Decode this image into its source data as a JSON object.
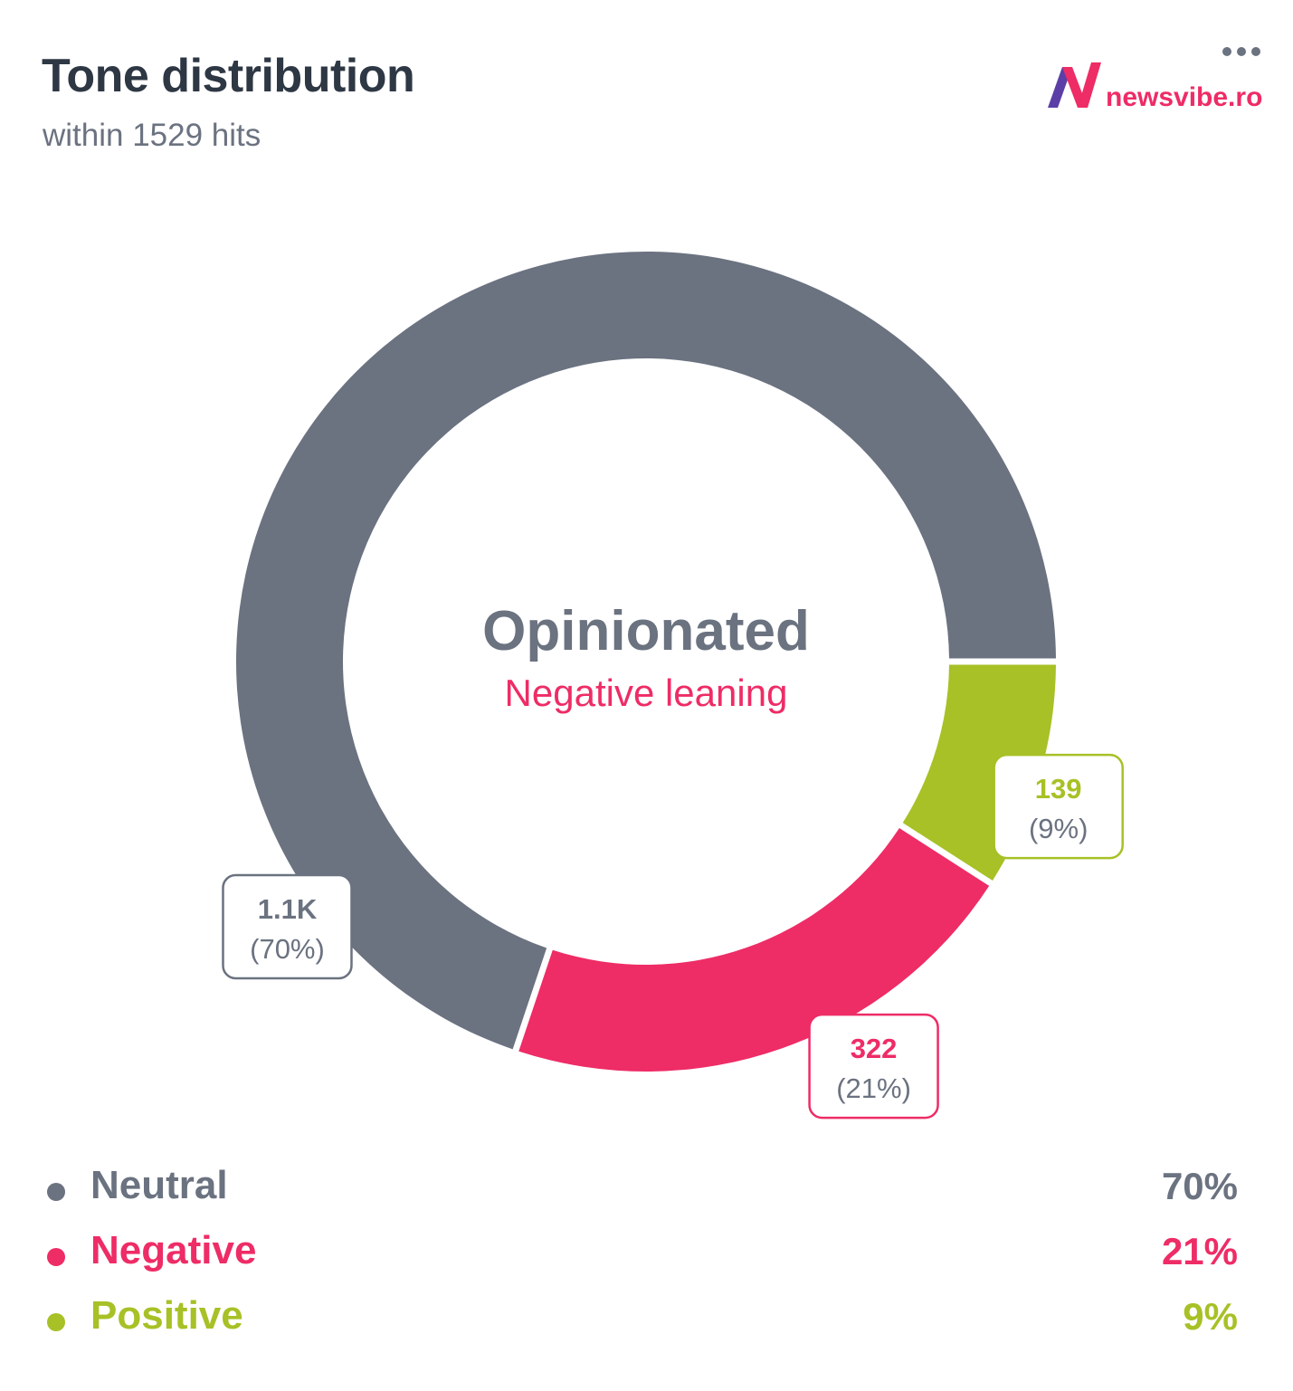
{
  "header": {
    "title": "Tone distribution",
    "subtitle": "within 1529 hits",
    "menu_icon": "more-horizontal-icon",
    "logo_text": "newsvibe.ro"
  },
  "chart_data": {
    "type": "pie",
    "title": "Tone distribution",
    "subtitle": "within 1529 hits",
    "total": 1529,
    "center_title": "Opinionated",
    "center_subtitle": "Negative leaning",
    "slices": [
      {
        "name": "Neutral",
        "value": 1068,
        "display_value": "1.1K",
        "percent_label": "(70%)",
        "legend_percent": "70%",
        "color": "#6b7280"
      },
      {
        "name": "Negative",
        "value": 322,
        "display_value": "322",
        "percent_label": "(21%)",
        "legend_percent": "21%",
        "color": "#ee2c66"
      },
      {
        "name": "Positive",
        "value": 139,
        "display_value": "139",
        "percent_label": "(9%)",
        "legend_percent": "9%",
        "color": "#a7c126"
      }
    ],
    "legend_position": "bottom"
  },
  "colors": {
    "title": "#2e3744",
    "subtitle": "#6b7280",
    "center_title": "#6b7280",
    "center_subtitle": "#ee2c66",
    "logo_text": "#ee2c66",
    "logo_purple": "#5b3fa6"
  }
}
